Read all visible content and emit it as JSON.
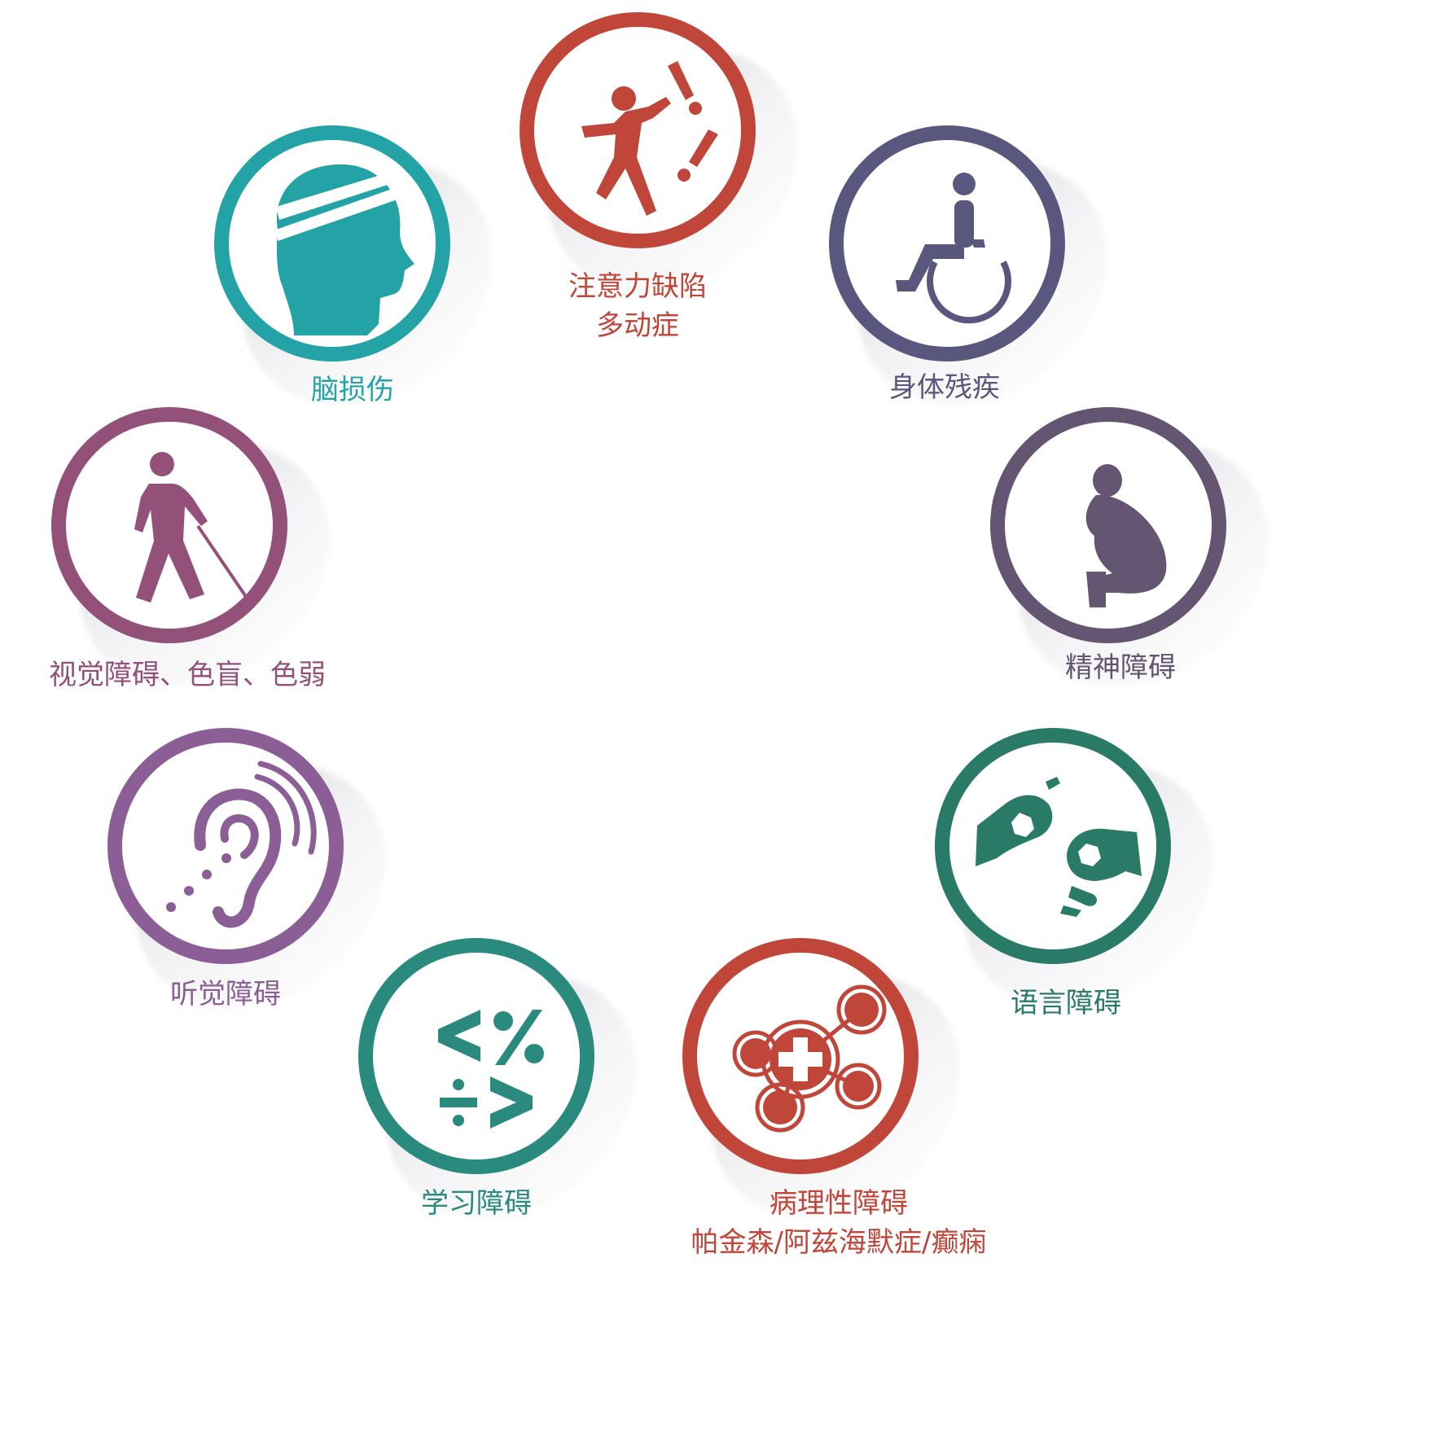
{
  "title": "",
  "items": [
    {
      "id": "adhd",
      "line1": "注意力缺陷",
      "line2": "多动症",
      "icon": "hyperactive-child-icon",
      "color": "#c0463a"
    },
    {
      "id": "physical",
      "line1": "身体残疾",
      "line2": "",
      "icon": "wheelchair-icon",
      "color": "#59577e"
    },
    {
      "id": "mental",
      "line1": "精神障碍",
      "line2": "",
      "icon": "crouching-person-icon",
      "color": "#645673"
    },
    {
      "id": "language",
      "line1": "语言障碍",
      "line2": "",
      "icon": "sign-language-icon",
      "color": "#2a7a68"
    },
    {
      "id": "pathological",
      "line1": "病理性障碍",
      "line2": "帕金森/阿兹海默症/癫痫",
      "icon": "medical-cross-icon",
      "color": "#c0463a"
    },
    {
      "id": "learning",
      "line1": "学习障碍",
      "line2": "",
      "icon": "math-symbols-icon",
      "color": "#2a8a7e"
    },
    {
      "id": "hearing",
      "line1": "听觉障碍",
      "line2": "",
      "icon": "hearing-loss-ear-icon",
      "color": "#8b5f95"
    },
    {
      "id": "visual",
      "line1": "视觉障碍、色盲、色弱",
      "line2": "",
      "icon": "blind-person-cane-icon",
      "color": "#93517a"
    },
    {
      "id": "brain",
      "line1": "脑损伤",
      "line2": "",
      "icon": "bandaged-head-icon",
      "color": "#24a3a6"
    }
  ]
}
